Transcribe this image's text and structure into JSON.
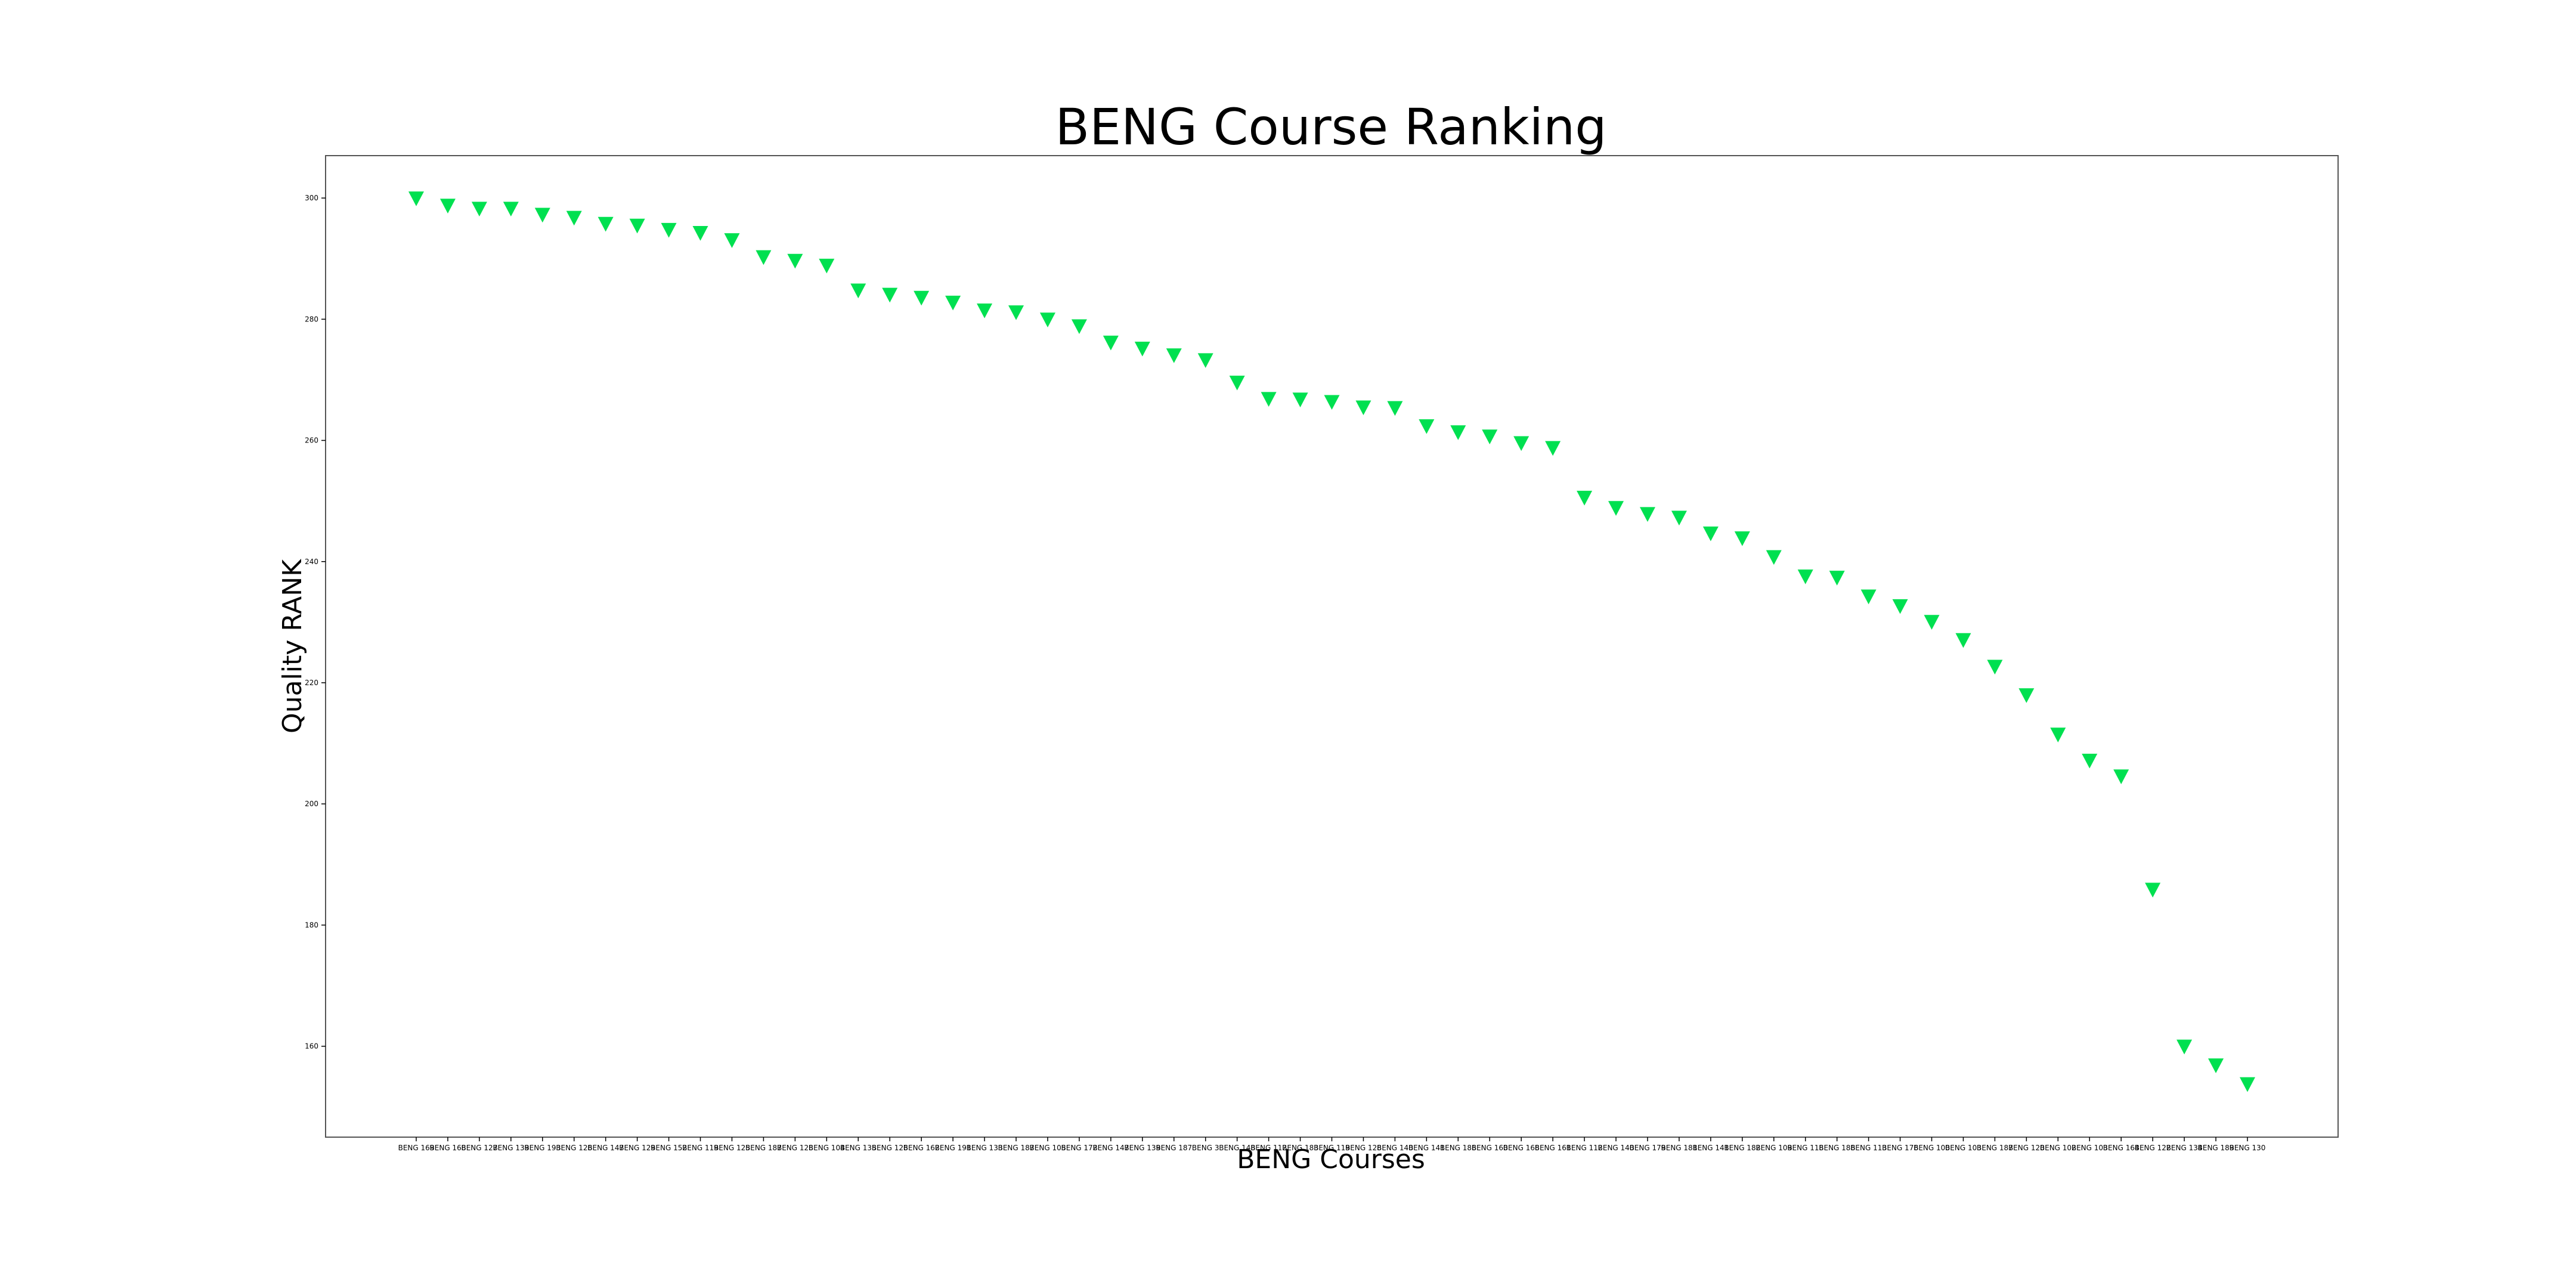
{
  "chart_data": {
    "type": "scatter",
    "title": "BENG Course Ranking",
    "xlabel": "BENG Courses",
    "ylabel": "Quality RANK",
    "marker": "triangle-down",
    "marker_color": "#00e050",
    "ylim": [
      145,
      307
    ],
    "yticks": [
      160,
      180,
      200,
      220,
      240,
      260,
      280,
      300
    ],
    "grid": false,
    "categories": [
      "BENG 169",
      "BENG 168",
      "BENG 127",
      "BENG 139",
      "BENG 193",
      "BENG 126",
      "BENG 147",
      "BENG 129",
      "BENG 152",
      "BENG 119",
      "BENG 125",
      "BENG 187",
      "BENG 128",
      "BENG 104",
      "BENG 135",
      "BENG 126",
      "BENG 162",
      "BENG 191",
      "BENG 133",
      "BENG 187",
      "BENG 105",
      "BENG 172",
      "BENG 147",
      "BENG 139",
      "BENG 187",
      "BENG 3",
      "BENG 148",
      "BENG 112",
      "BENG 183",
      "BENG 119",
      "BENG 128",
      "BENG 140",
      "BENG 141",
      "BENG 186",
      "BENG 160",
      "BENG 168",
      "BENG 161",
      "BENG 112",
      "BENG 140",
      "BENG 179",
      "BENG 181",
      "BENG 141",
      "BENG 182",
      "BENG 109",
      "BENG 118",
      "BENG 186",
      "BENG 113",
      "BENG 176",
      "BENG 100",
      "BENG 103",
      "BENG 187",
      "BENG 120",
      "BENG 102",
      "BENG 103",
      "BENG 164",
      "BENG 122",
      "BENG 134",
      "BENG 189",
      "BENG 130"
    ],
    "values": [
      300,
      298.8,
      298.3,
      298.3,
      297.3,
      296.8,
      295.8,
      295.5,
      294.8,
      294.3,
      293.1,
      290.3,
      289.7,
      288.9,
      284.8,
      284.1,
      283.6,
      282.8,
      281.5,
      281.2,
      280,
      278.9,
      276.2,
      275.2,
      274.1,
      273.3,
      269.6,
      266.9,
      266.8,
      266.4,
      265.5,
      265.4,
      262.4,
      261.4,
      260.7,
      259.6,
      258.8,
      250.6,
      248.9,
      247.9,
      247.3,
      244.7,
      243.9,
      240.8,
      237.6,
      237.4,
      234.3,
      232.7,
      230.1,
      227.1,
      222.7,
      218,
      211.5,
      207.2,
      204.6,
      185.9,
      160,
      156.9,
      153.8
    ]
  }
}
